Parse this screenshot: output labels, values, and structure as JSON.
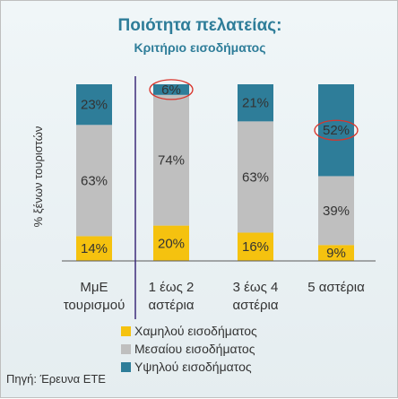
{
  "chart_data": {
    "type": "bar",
    "stacked": true,
    "title": "Ποιότητα πελατείας:",
    "subtitle": "Κριτήριο εισοδήματος",
    "ylabel": "% ξένων τουριστών",
    "ylim": [
      0,
      100
    ],
    "grid": false,
    "legend_position": "bottom",
    "categories": [
      [
        "ΜμΕ",
        "τουρισμού"
      ],
      [
        "1 έως 2",
        "αστέρια"
      ],
      [
        "3 έως 4",
        "αστέρια"
      ],
      [
        "5 αστέρια"
      ]
    ],
    "series": [
      {
        "name": "Χαμηλού εισοδήματος",
        "color": "#f5c20f",
        "values": [
          14,
          20,
          16,
          9
        ]
      },
      {
        "name": "Μεσαίου εισοδήματος",
        "color": "#bfbfbf",
        "values": [
          63,
          74,
          63,
          39
        ]
      },
      {
        "name": "Υψηλού εισοδήματος",
        "color": "#2e7d99",
        "values": [
          23,
          6,
          21,
          52
        ]
      }
    ],
    "highlighted_labels": [
      {
        "series": 2,
        "category": 1
      },
      {
        "series": 2,
        "category": 3
      }
    ],
    "highlight_color": "#d9342b"
  },
  "source": "Πηγή: Έρευνα ΕΤΕ"
}
